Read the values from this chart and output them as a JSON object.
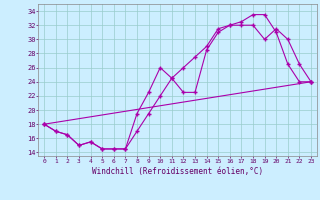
{
  "xlabel": "Windchill (Refroidissement éolien,°C)",
  "background_color": "#cceeff",
  "line_color": "#aa00aa",
  "grid_color": "#99cccc",
  "xlim": [
    -0.5,
    23.5
  ],
  "ylim": [
    13.5,
    35.0
  ],
  "xticks": [
    0,
    1,
    2,
    3,
    4,
    5,
    6,
    7,
    8,
    9,
    10,
    11,
    12,
    13,
    14,
    15,
    16,
    17,
    18,
    19,
    20,
    21,
    22,
    23
  ],
  "yticks": [
    14,
    16,
    18,
    20,
    22,
    24,
    26,
    28,
    30,
    32,
    34
  ],
  "line1_x": [
    0,
    1,
    2,
    3,
    4,
    5,
    6,
    7,
    8,
    9,
    10,
    11,
    12,
    13,
    14,
    15,
    16,
    17,
    18,
    19,
    20,
    21,
    22,
    23
  ],
  "line1_y": [
    18,
    17,
    16.5,
    15,
    15.5,
    14.5,
    14.5,
    14.5,
    17,
    19.5,
    22,
    24.5,
    26,
    27.5,
    29,
    31.5,
    32,
    32.5,
    33.5,
    33.5,
    31,
    26.5,
    24,
    24
  ],
  "line2_x": [
    0,
    1,
    2,
    3,
    4,
    5,
    6,
    7,
    8,
    9,
    10,
    11,
    12,
    13,
    14,
    15,
    16,
    17,
    18,
    19,
    20,
    21,
    22,
    23
  ],
  "line2_y": [
    18,
    17,
    16.5,
    15,
    15.5,
    14.5,
    14.5,
    14.5,
    19.5,
    22.5,
    26,
    24.5,
    22.5,
    22.5,
    28.5,
    31,
    32,
    32,
    32,
    30,
    31.5,
    30,
    26.5,
    24
  ],
  "line3_x": [
    0,
    23
  ],
  "line3_y": [
    18,
    24
  ]
}
